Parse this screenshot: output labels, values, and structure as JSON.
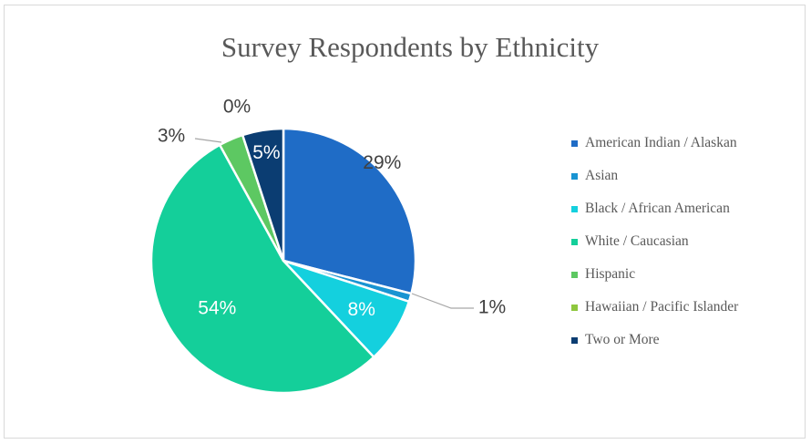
{
  "chart_data": {
    "type": "pie",
    "title": "Survey Respondents by Ethnicity",
    "legend_position": "right",
    "categories": [
      "American Indian / Alaskan",
      "Asian",
      "Black / African American",
      "White / Caucasian",
      "Hispanic",
      "Hawaiian / Pacific Islander",
      "Two or More"
    ],
    "values": [
      29,
      1,
      8,
      54,
      3,
      0,
      5
    ],
    "labels": [
      "29%",
      "1%",
      "8%",
      "54%",
      "3%",
      "0%",
      "5%"
    ],
    "colors": [
      "#1f6cc6",
      "#1994d2",
      "#14d0de",
      "#14cf9a",
      "#5dc862",
      "#8ec73e",
      "#0b3d72"
    ]
  }
}
